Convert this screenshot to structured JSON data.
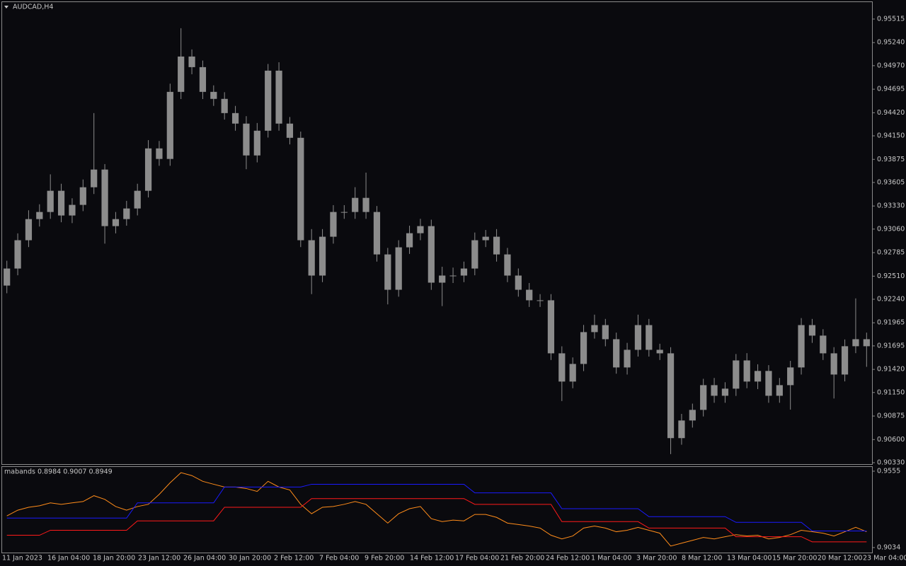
{
  "chart_data": [
    {
      "type": "candlestick",
      "title": "AUDCAD,H4",
      "color": "#8c8c8c",
      "time_labels": [
        "11 Jan 2023",
        "16 Jan 04:00",
        "18 Jan 20:00",
        "23 Jan 12:00",
        "26 Jan 04:00",
        "30 Jan 20:00",
        "2 Feb 12:00",
        "7 Feb 04:00",
        "9 Feb 20:00",
        "14 Feb 12:00",
        "17 Feb 04:00",
        "21 Feb 20:00",
        "24 Feb 12:00",
        "1 Mar 04:00",
        "3 Mar 20:00",
        "8 Mar 12:00",
        "13 Mar 04:00",
        "15 Mar 20:00",
        "20 Mar 12:00",
        "23 Mar 04:00"
      ],
      "open": [
        0.924,
        0.92599,
        0.9293,
        0.93177,
        0.9326,
        0.93508,
        0.93219,
        0.93343,
        0.93549,
        0.93756,
        0.93095,
        0.93177,
        0.93301,
        0.93508,
        0.94003,
        0.9388,
        0.94664,
        0.95077,
        0.94953,
        0.94664,
        0.94582,
        0.94416,
        0.94293,
        0.93921,
        0.9421,
        0.94912,
        0.94293,
        0.94127,
        0.9293,
        0.92517,
        0.92971,
        0.9326,
        0.9326,
        0.93425,
        0.9326,
        0.92764,
        0.92351,
        0.92847,
        0.93012,
        0.93095,
        0.92434,
        0.92517,
        0.92517,
        0.92599,
        0.9293,
        0.92971,
        0.92764,
        0.92517,
        0.92351,
        0.92228,
        0.92228,
        0.91608,
        0.91278,
        0.91484,
        0.91856,
        0.91938,
        0.91773,
        0.91443,
        0.91649,
        0.91938,
        0.91649,
        0.91608,
        0.90617,
        0.90823,
        0.90947,
        0.91236,
        0.91112,
        0.91195,
        0.91525,
        0.91278,
        0.91402,
        0.91112,
        0.91236,
        0.91443,
        0.91938,
        0.91815,
        0.91608,
        0.9136,
        0.91691,
        0.91773
      ],
      "high": [
        0.9269,
        0.9301,
        0.9328,
        0.9335,
        0.937,
        0.9359,
        0.9342,
        0.9364,
        0.94416,
        0.9382,
        0.9326,
        0.9339,
        0.9359,
        0.941,
        0.9409,
        0.9476,
        0.95408,
        0.9516,
        0.9503,
        0.9474,
        0.9466,
        0.945,
        0.9438,
        0.943,
        0.9499,
        0.9501,
        0.9437,
        0.942,
        0.9306,
        0.9306,
        0.9334,
        0.9334,
        0.9355,
        0.9372,
        0.9333,
        0.9284,
        0.9293,
        0.931,
        0.9318,
        0.9317,
        0.9262,
        0.9261,
        0.9268,
        0.9302,
        0.9305,
        0.9306,
        0.9284,
        0.926,
        0.9243,
        0.923,
        0.923,
        0.9169,
        0.9156,
        0.9194,
        0.9206,
        0.9201,
        0.9185,
        0.9173,
        0.9206,
        0.9201,
        0.9172,
        0.9168,
        0.909,
        0.9102,
        0.9131,
        0.9132,
        0.9127,
        0.916,
        0.9161,
        0.9148,
        0.9147,
        0.9132,
        0.9152,
        0.9202,
        0.9201,
        0.9189,
        0.9168,
        0.9177,
        0.9225,
        0.9185
      ],
      "low": [
        0.9231,
        0.9252,
        0.9285,
        0.9309,
        0.9318,
        0.9314,
        0.9313,
        0.9327,
        0.9347,
        0.9289,
        0.9301,
        0.931,
        0.9322,
        0.9343,
        0.938,
        0.938,
        0.9458,
        0.9487,
        0.9458,
        0.945,
        0.9434,
        0.9421,
        0.9376,
        0.9384,
        0.9413,
        0.9421,
        0.9405,
        0.9285,
        0.923,
        0.9244,
        0.9289,
        0.9318,
        0.9318,
        0.9318,
        0.9268,
        0.9218,
        0.9227,
        0.9277,
        0.9293,
        0.9235,
        0.9216,
        0.9243,
        0.9244,
        0.9252,
        0.9285,
        0.9268,
        0.9244,
        0.9227,
        0.9215,
        0.9215,
        0.9153,
        0.9105,
        0.912,
        0.914,
        0.9178,
        0.9169,
        0.9137,
        0.9136,
        0.9157,
        0.9157,
        0.9153,
        0.9043,
        0.9054,
        0.9074,
        0.9087,
        0.9103,
        0.9103,
        0.9111,
        0.912,
        0.9119,
        0.9103,
        0.9103,
        0.9095,
        0.9136,
        0.9173,
        0.9153,
        0.9108,
        0.9128,
        0.9161,
        0.9145
      ],
      "close": [
        0.92599,
        0.9293,
        0.93177,
        0.9326,
        0.93508,
        0.93219,
        0.93343,
        0.93549,
        0.93756,
        0.93095,
        0.93177,
        0.93301,
        0.93508,
        0.94003,
        0.9388,
        0.94664,
        0.95077,
        0.94953,
        0.94664,
        0.94582,
        0.94416,
        0.94293,
        0.93921,
        0.9421,
        0.94912,
        0.94293,
        0.94127,
        0.9293,
        0.92517,
        0.92971,
        0.9326,
        0.9326,
        0.93425,
        0.9326,
        0.92764,
        0.92351,
        0.92847,
        0.93012,
        0.93095,
        0.92434,
        0.92517,
        0.92517,
        0.92599,
        0.9293,
        0.92971,
        0.92764,
        0.92517,
        0.92351,
        0.92228,
        0.92228,
        0.91608,
        0.91278,
        0.91484,
        0.91856,
        0.91938,
        0.91773,
        0.91443,
        0.91649,
        0.91938,
        0.91649,
        0.91608,
        0.90617,
        0.90823,
        0.90947,
        0.91236,
        0.91112,
        0.91195,
        0.91525,
        0.91278,
        0.91402,
        0.91112,
        0.91236,
        0.91443,
        0.91938,
        0.91815,
        0.91608,
        0.9136,
        0.91691,
        0.91773,
        0.91691
      ],
      "ylim": [
        0.90313,
        0.95713
      ],
      "yticks": [
        0.95515,
        {
          "value": 0.9524,
          "label": "0.95240"
        },
        {
          "value": 0.9497,
          "label": "0.94970"
        },
        0.94695,
        {
          "value": 0.9442,
          "label": "0.94420"
        },
        {
          "value": 0.9415,
          "label": "0.94150"
        },
        0.93875,
        0.93605,
        {
          "value": 0.9333,
          "label": "0.93330"
        },
        {
          "value": 0.9306,
          "label": "0.93060"
        },
        0.92785,
        {
          "value": 0.9251,
          "label": "0.92510"
        },
        {
          "value": 0.9224,
          "label": "0.92240"
        },
        0.91965,
        0.91695,
        {
          "value": 0.9142,
          "label": "0.91420"
        },
        {
          "value": 0.9115,
          "label": "0.91150"
        },
        0.90875,
        {
          "value": 0.906,
          "label": "0.90600"
        },
        {
          "value": 0.9033,
          "label": "0.90330"
        }
      ]
    },
    {
      "type": "line",
      "title": "mabands 0.8984 0.9007 0.8949",
      "ylim": [
        0.8995,
        0.9584
      ],
      "yticks": [
        0.9555,
        0.9034
      ],
      "series": [
        {
          "color": "#ff8c1a",
          "values": [
            0.925,
            0.9289,
            0.9309,
            0.9319,
            0.9339,
            0.9329,
            0.9339,
            0.9348,
            0.9388,
            0.9363,
            0.9314,
            0.9289,
            0.9314,
            0.9329,
            0.9397,
            0.9476,
            0.9545,
            0.9525,
            0.9486,
            0.9466,
            0.9447,
            0.9447,
            0.9437,
            0.9417,
            0.9486,
            0.9447,
            0.9427,
            0.9329,
            0.9265,
            0.9309,
            0.9314,
            0.9329,
            0.9348,
            0.9329,
            0.9265,
            0.9201,
            0.9265,
            0.9299,
            0.9314,
            0.9231,
            0.9211,
            0.9221,
            0.9216,
            0.926,
            0.926,
            0.924,
            0.9201,
            0.9191,
            0.9181,
            0.9167,
            0.9118,
            0.9093,
            0.9113,
            0.9167,
            0.9181,
            0.9167,
            0.9142,
            0.9152,
            0.9172,
            0.9152,
            0.9132,
            0.9044,
            0.9064,
            0.9083,
            0.9103,
            0.9093,
            0.9108,
            0.9122,
            0.9113,
            0.9118,
            0.9093,
            0.9103,
            0.9122,
            0.9152,
            0.9142,
            0.9132,
            0.9113,
            0.9142,
            0.9172,
            0.9142
          ]
        },
        {
          "color": "#1a1aff",
          "values": [
            0.9235,
            0.9235,
            0.9235,
            0.9235,
            0.9235,
            0.9235,
            0.9235,
            0.9235,
            0.9235,
            0.9235,
            0.9235,
            0.9235,
            0.9339,
            0.9339,
            0.9339,
            0.9339,
            0.9339,
            0.9339,
            0.9339,
            0.9339,
            0.9447,
            0.9447,
            0.9447,
            0.9447,
            0.9447,
            0.9447,
            0.9447,
            0.9447,
            0.9466,
            0.9466,
            0.9466,
            0.9466,
            0.9466,
            0.9466,
            0.9466,
            0.9466,
            0.9466,
            0.9466,
            0.9466,
            0.9466,
            0.9466,
            0.9466,
            0.9466,
            0.9407,
            0.9407,
            0.9407,
            0.9407,
            0.9407,
            0.9407,
            0.9407,
            0.9407,
            0.9299,
            0.9299,
            0.9299,
            0.9299,
            0.9299,
            0.9299,
            0.9299,
            0.9299,
            0.9245,
            0.9245,
            0.9245,
            0.9245,
            0.9245,
            0.9245,
            0.9245,
            0.9245,
            0.9206,
            0.9206,
            0.9206,
            0.9206,
            0.9206,
            0.9206,
            0.9206,
            0.9147,
            0.9147,
            0.9147,
            0.9147,
            0.9147,
            0.9147
          ]
        },
        {
          "color": "#ff1a1a",
          "values": [
            0.9118,
            0.9118,
            0.9118,
            0.9118,
            0.9152,
            0.9152,
            0.9152,
            0.9152,
            0.9152,
            0.9152,
            0.9152,
            0.9152,
            0.9216,
            0.9216,
            0.9216,
            0.9216,
            0.9216,
            0.9216,
            0.9216,
            0.9216,
            0.9309,
            0.9309,
            0.9309,
            0.9309,
            0.9309,
            0.9309,
            0.9309,
            0.9309,
            0.9368,
            0.9368,
            0.9368,
            0.9368,
            0.9368,
            0.9368,
            0.9368,
            0.9368,
            0.9368,
            0.9368,
            0.9368,
            0.9368,
            0.9368,
            0.9368,
            0.9368,
            0.9329,
            0.9329,
            0.9329,
            0.9329,
            0.9329,
            0.9329,
            0.9329,
            0.9329,
            0.9211,
            0.9211,
            0.9211,
            0.9211,
            0.9211,
            0.9211,
            0.9211,
            0.9211,
            0.9167,
            0.9167,
            0.9167,
            0.9167,
            0.9167,
            0.9167,
            0.9167,
            0.9167,
            0.9108,
            0.9108,
            0.9108,
            0.9108,
            0.9108,
            0.9108,
            0.9108,
            0.9073,
            0.9073,
            0.9073,
            0.9073,
            0.9073,
            0.9073
          ]
        }
      ]
    }
  ]
}
